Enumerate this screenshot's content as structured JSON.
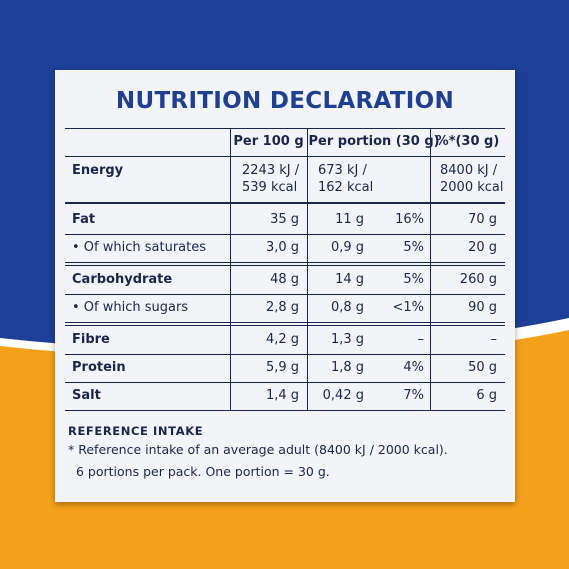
{
  "header": {
    "title": "NUTRITION DECLARATION"
  },
  "table": {
    "columns": [
      "Per 100 g",
      "Per portion (30 g)",
      "%*(30 g)"
    ],
    "rows": [
      [
        [
          "Energy"
        ],
        [
          "2243 kJ /",
          "539 kcal"
        ],
        [
          "673 kJ /",
          "162 kcal"
        ],
        null,
        [
          "8400 kJ /",
          "2000 kcal"
        ]
      ],
      [
        [
          "Fat"
        ],
        [
          "35 g"
        ],
        [
          "11 g"
        ],
        [
          "16%"
        ],
        [
          "70 g"
        ]
      ],
      [
        [
          "• Of which saturates"
        ],
        [
          "3,0 g"
        ],
        [
          "0,9 g"
        ],
        [
          "5%"
        ],
        [
          "20 g"
        ]
      ],
      [
        [
          "Carbohydrate"
        ],
        [
          "48 g"
        ],
        [
          "14 g"
        ],
        [
          "5%"
        ],
        [
          "260 g"
        ]
      ],
      [
        [
          "• Of which sugars"
        ],
        [
          "2,8 g"
        ],
        [
          "0,8 g"
        ],
        [
          "<1%"
        ],
        [
          "90 g"
        ]
      ],
      [
        [
          "Fibre"
        ],
        [
          "4,2 g"
        ],
        [
          "1,3 g"
        ],
        [
          "–"
        ],
        [
          "–"
        ]
      ],
      [
        [
          "Protein"
        ],
        [
          "5,9 g"
        ],
        [
          "1,8 g"
        ],
        [
          "4%"
        ],
        [
          "50 g"
        ]
      ],
      [
        [
          "Salt"
        ],
        [
          "1,4 g"
        ],
        [
          "0,42 g"
        ],
        [
          "7%"
        ],
        [
          "6 g"
        ]
      ]
    ]
  },
  "footer": {
    "heading": "REFERENCE INTAKE",
    "notes": [
      "* Reference intake of an average adult (8400 kJ / 2000 kcal).",
      "6 portions per pack. One portion = 30 g."
    ]
  }
}
